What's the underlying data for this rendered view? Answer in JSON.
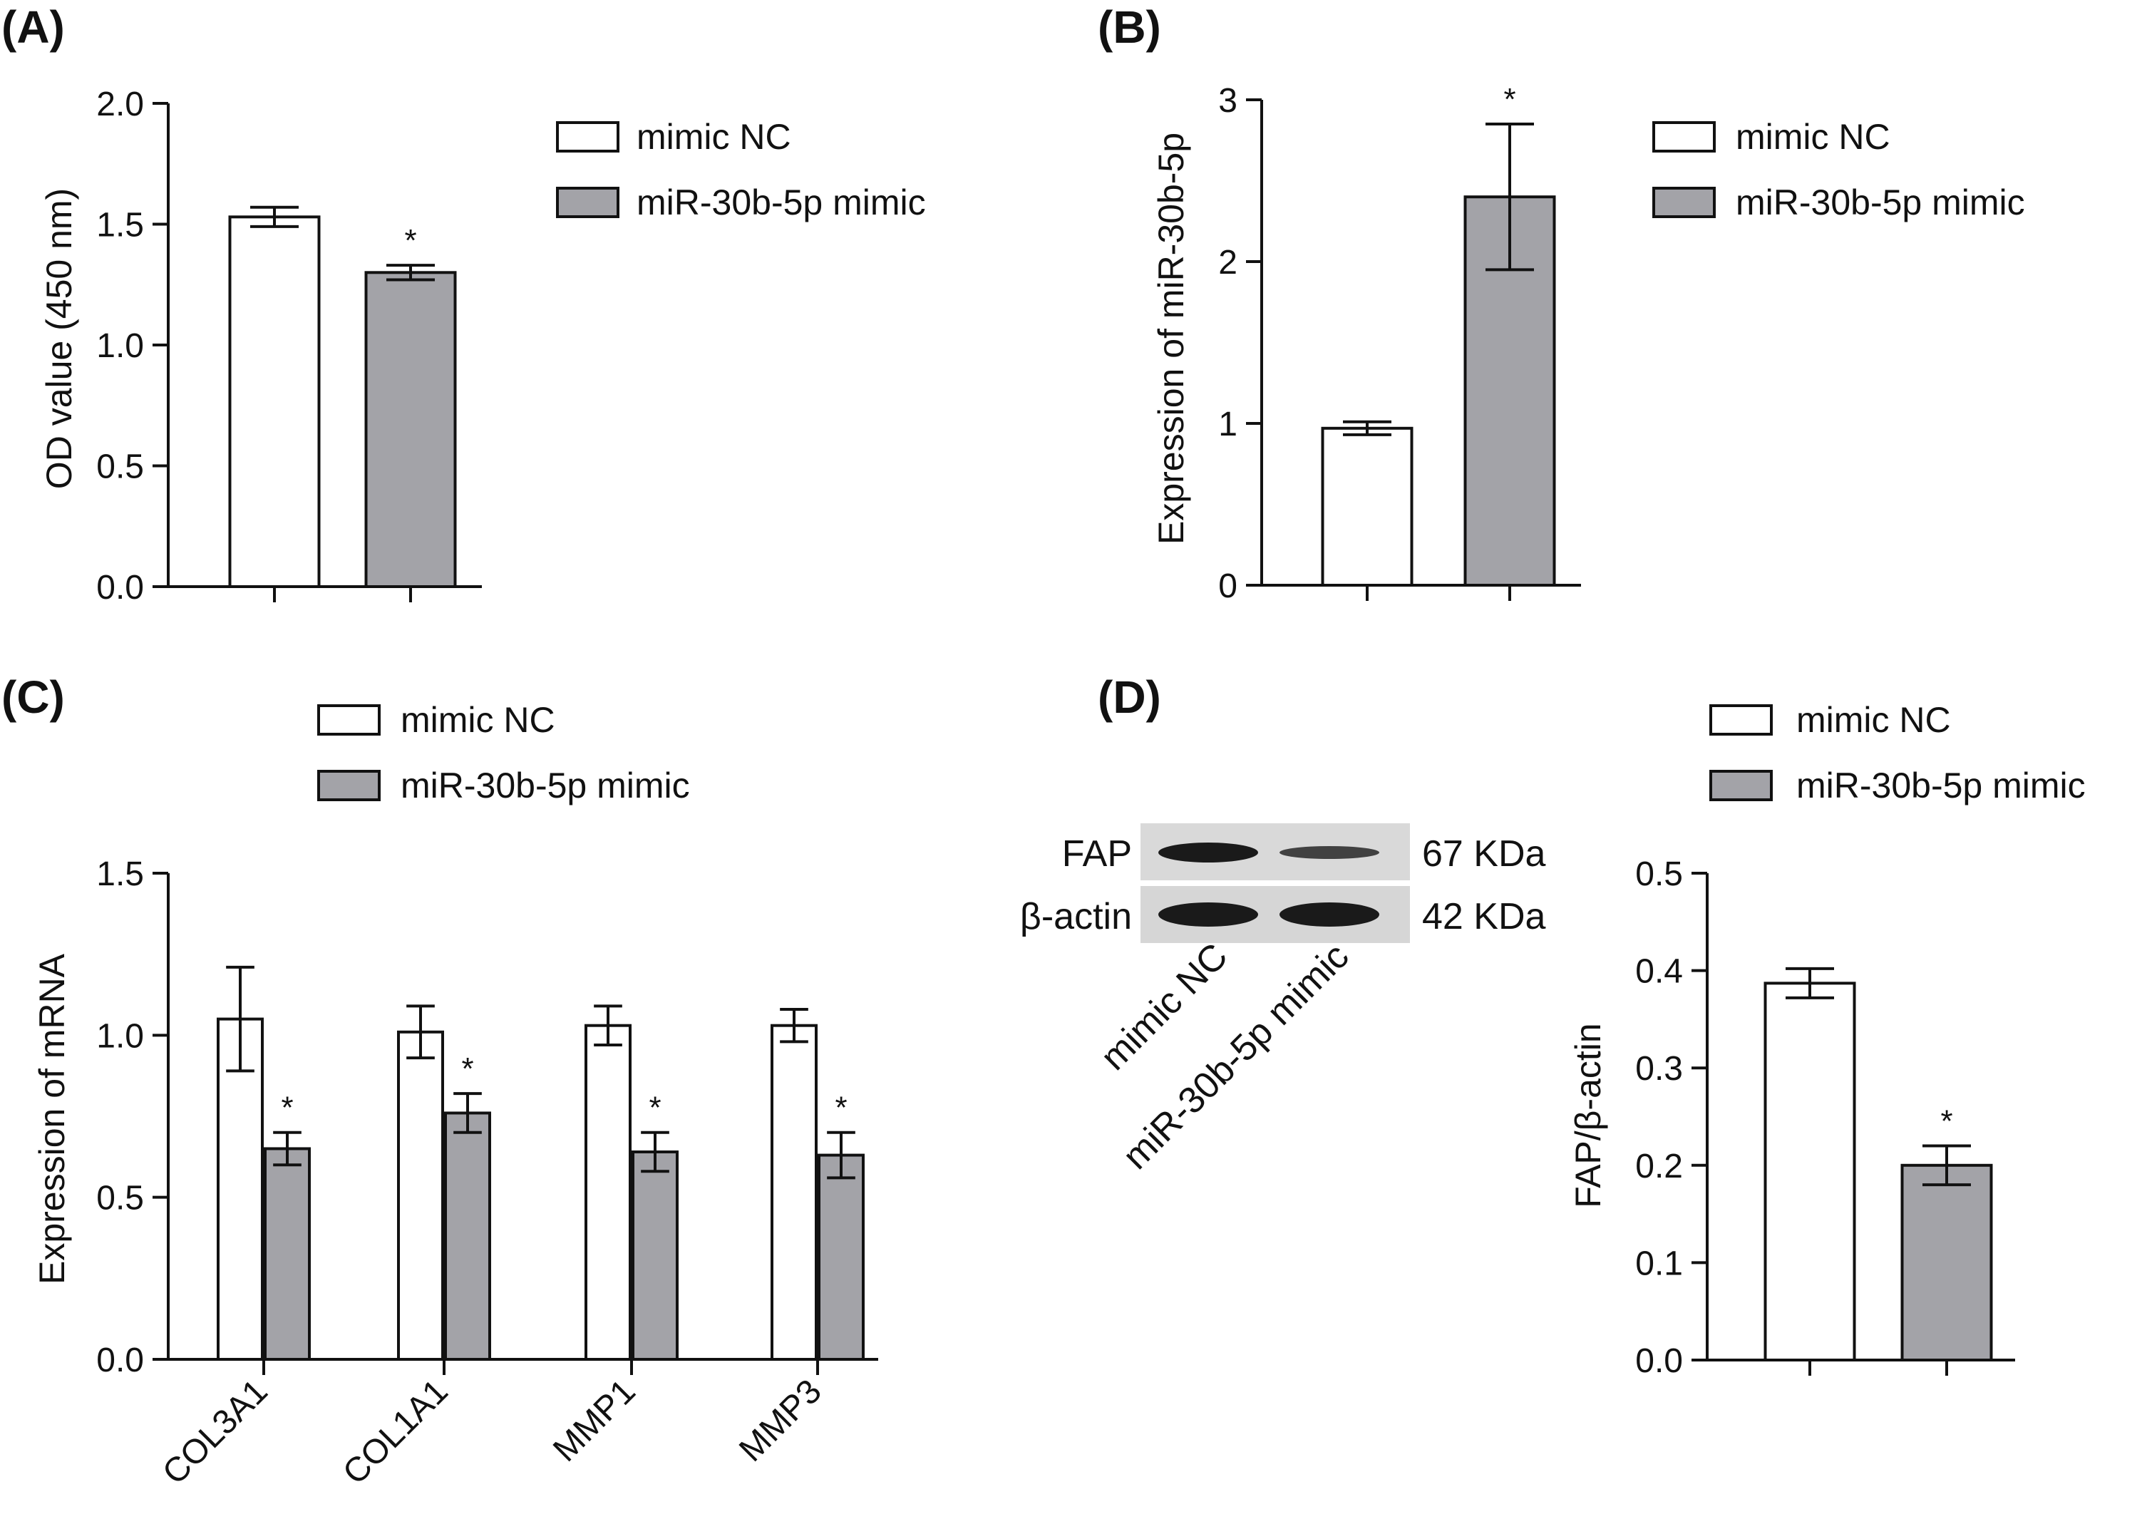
{
  "chart_data": [
    {
      "id": "A",
      "panel_label": "(A)",
      "type": "bar",
      "categories": [
        "mimic NC",
        "miR-30b-5p mimic"
      ],
      "values": [
        1.53,
        1.3
      ],
      "errors": [
        0.04,
        0.03
      ],
      "significance": [
        "",
        "*"
      ],
      "ylabel": "OD value (450 nm)",
      "xlabel": "",
      "ylim": [
        0,
        2.0
      ],
      "yticks": [
        0.0,
        0.5,
        1.0,
        1.5,
        2.0
      ],
      "ytick_labels": [
        "0.0",
        "0.5",
        "1.0",
        "1.5",
        "2.0"
      ],
      "legend": [
        "mimic NC",
        "miR-30b-5p mimic"
      ],
      "legend_position": "top-right"
    },
    {
      "id": "B",
      "panel_label": "(B)",
      "type": "bar",
      "categories": [
        "mimic NC",
        "miR-30b-5p mimic"
      ],
      "values": [
        0.97,
        2.4
      ],
      "errors": [
        0.04,
        0.45
      ],
      "significance": [
        "",
        "*"
      ],
      "ylabel": "Expression of miR-30b-5p",
      "xlabel": "",
      "ylim": [
        0,
        3
      ],
      "yticks": [
        0,
        1,
        2,
        3
      ],
      "ytick_labels": [
        "0",
        "1",
        "2",
        "3"
      ],
      "legend": [
        "mimic NC",
        "miR-30b-5p mimic"
      ],
      "legend_position": "top-right"
    },
    {
      "id": "C",
      "panel_label": "(C)",
      "type": "bar",
      "categories": [
        "COL3A1",
        "COL1A1",
        "MMP1",
        "MMP3"
      ],
      "series": [
        {
          "name": "mimic NC",
          "values": [
            1.05,
            1.01,
            1.03,
            1.03
          ],
          "errors": [
            0.16,
            0.08,
            0.06,
            0.05
          ]
        },
        {
          "name": "miR-30b-5p mimic",
          "values": [
            0.65,
            0.76,
            0.64,
            0.63
          ],
          "errors": [
            0.05,
            0.06,
            0.06,
            0.07
          ]
        }
      ],
      "significance": [
        "*",
        "*",
        "*",
        "*"
      ],
      "ylabel": "Expression of mRNA",
      "xlabel": "",
      "ylim": [
        0,
        1.5
      ],
      "yticks": [
        0.0,
        0.5,
        1.0,
        1.5
      ],
      "ytick_labels": [
        "0.0",
        "0.5",
        "1.0",
        "1.5"
      ],
      "legend": [
        "mimic NC",
        "miR-30b-5p mimic"
      ],
      "legend_position": "top"
    },
    {
      "id": "D",
      "panel_label": "(D)",
      "type": "bar",
      "categories": [
        "mimic NC",
        "miR-30b-5p mimic"
      ],
      "values": [
        0.387,
        0.2
      ],
      "errors": [
        0.015,
        0.02
      ],
      "significance": [
        "",
        "*"
      ],
      "ylabel": "FAP/β-actin",
      "xlabel": "",
      "ylim": [
        0,
        0.5
      ],
      "yticks": [
        0.0,
        0.1,
        0.2,
        0.3,
        0.4,
        0.5
      ],
      "ytick_labels": [
        "0.0",
        "0.1",
        "0.2",
        "0.3",
        "0.4",
        "0.5"
      ],
      "legend": [
        "mimic NC",
        "miR-30b-5p mimic"
      ],
      "legend_position": "top-right"
    }
  ],
  "western_blot": {
    "bands": [
      {
        "protein": "FAP",
        "size": "67 KDa",
        "intensities": [
          1.0,
          0.55
        ]
      },
      {
        "protein": "β-actin",
        "size": "42 KDa",
        "intensities": [
          1.0,
          1.0
        ]
      }
    ],
    "lanes": [
      "mimic NC",
      "miR-30b-5p mimic"
    ]
  },
  "colors": {
    "control_fill": "#ffffff",
    "treatment_fill": "#a3a3a8",
    "stroke": "#111111",
    "blot_background": "#d9d9d9",
    "band": "#1a1a1a"
  }
}
